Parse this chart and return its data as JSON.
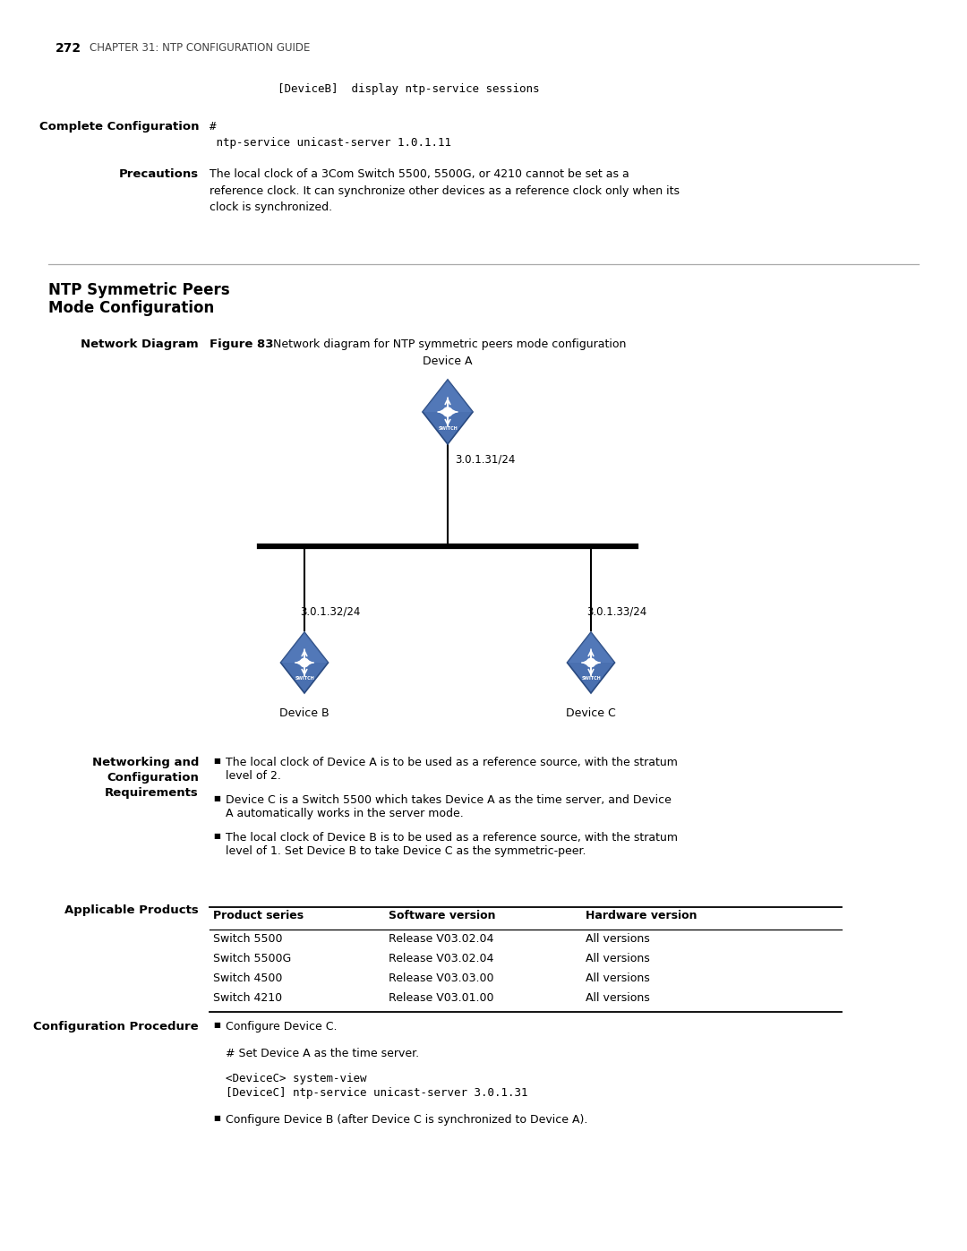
{
  "page_number": "272",
  "chapter_header": "CHAPTER 31: NTP CONFIGURATION GUIDE",
  "top_code": "[DeviceB]  display ntp-service sessions",
  "section1_label": "Complete Configuration",
  "section1_code_hash": "#",
  "section1_code_body": " ntp-service unicast-server 1.0.1.11",
  "section2_label": "Precautions",
  "section2_text": "The local clock of a 3Com Switch 5500, 5500G, or 4210 cannot be set as a\nreference clock. It can synchronize other devices as a reference clock only when its\nclock is synchronized.",
  "section3_title_line1": "NTP Symmetric Peers",
  "section3_title_line2": "Mode Configuration",
  "network_diagram_label": "Network Diagram",
  "figure_label": "Figure 83",
  "figure_caption": "Network diagram for NTP symmetric peers mode configuration",
  "device_a_label": "Device A",
  "device_a_ip": "3.0.1.31/24",
  "device_b_label": "Device B",
  "device_b_ip": "3.0.1.32/24",
  "device_c_label": "Device C",
  "device_c_ip": "3.0.1.33/24",
  "bullet1": "The local clock of Device A is to be used as a reference source, with the stratum\nlevel of 2.",
  "bullet2": "Device C is a Switch 5500 which takes Device A as the time server, and Device\nA automatically works in the server mode.",
  "bullet3": "The local clock of Device B is to be used as a reference source, with the stratum\nlevel of 1. Set Device B to take Device C as the symmetric-peer.",
  "applicable_label": "Applicable Products",
  "table_headers": [
    "Product series",
    "Software version",
    "Hardware version"
  ],
  "table_rows": [
    [
      "Switch 5500",
      "Release V03.02.04",
      "All versions"
    ],
    [
      "Switch 5500G",
      "Release V03.02.04",
      "All versions"
    ],
    [
      "Switch 4500",
      "Release V03.03.00",
      "All versions"
    ],
    [
      "Switch 4210",
      "Release V03.01.00",
      "All versions"
    ]
  ],
  "config_proc_label": "Configuration Procedure",
  "config_bullet1": "Configure Device C.",
  "config_text1": "# Set Device A as the time server.",
  "config_code1_line1": "<DeviceC> system-view",
  "config_code1_line2": "[DeviceC] ntp-service unicast-server 3.0.1.31",
  "config_bullet2": "Configure Device B (after Device C is synchronized to Device A).",
  "bg_color": "#ffffff",
  "device_icon_dark": "#3d5f96",
  "device_icon_mid": "#5577b5",
  "device_icon_light": "#7090cc"
}
